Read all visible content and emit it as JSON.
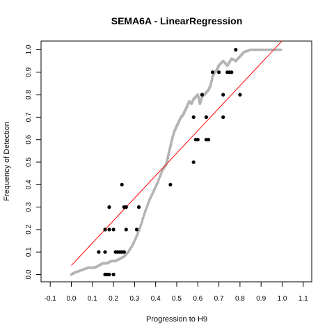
{
  "chart_data": {
    "type": "scatter",
    "title": "SEMA6A - LinearRegression",
    "xlabel": "Progression to H9",
    "ylabel": "Frequency of Detection",
    "xlim": [
      -0.1,
      1.1
    ],
    "ylim": [
      0.0,
      1.0
    ],
    "grid": false,
    "x_ticks": [
      -0.1,
      0.0,
      0.1,
      0.2,
      0.3,
      0.4,
      0.5,
      0.6,
      0.7,
      0.8,
      0.9,
      1.0,
      1.1
    ],
    "x_tick_labels": [
      "-0.1",
      "0.0",
      "0.1",
      "0.2",
      "0.3",
      "0.4",
      "0.5",
      "0.6",
      "0.7",
      "0.8",
      "0.9",
      "1.0",
      "1.1"
    ],
    "y_ticks": [
      0.0,
      0.1,
      0.2,
      0.3,
      0.4,
      0.5,
      0.6,
      0.7,
      0.8,
      0.9,
      1.0
    ],
    "y_tick_labels": [
      "0.0",
      "0.1",
      "0.2",
      "0.3",
      "0.4",
      "0.5",
      "0.6",
      "0.7",
      "0.8",
      "0.9",
      "1.0"
    ],
    "colors": {
      "points": "#000000",
      "cumulative": "#b4b4b4",
      "regression": "#ff0000"
    },
    "series": [
      {
        "type": "scatter",
        "x": [
          0.16,
          0.17,
          0.18,
          0.2,
          0.13,
          0.16,
          0.21,
          0.22,
          0.23,
          0.24,
          0.25,
          0.18,
          0.16,
          0.2,
          0.26,
          0.31,
          0.18,
          0.25,
          0.26,
          0.32,
          0.24,
          0.47,
          0.58,
          0.59,
          0.6,
          0.64,
          0.65,
          0.58,
          0.64,
          0.72,
          0.62,
          0.72,
          0.8,
          0.67,
          0.7,
          0.74,
          0.75,
          0.76,
          0.78
        ],
        "y": [
          0.0,
          0.0,
          0.0,
          0.0,
          0.1,
          0.1,
          0.1,
          0.1,
          0.1,
          0.1,
          0.1,
          0.2,
          0.2,
          0.2,
          0.2,
          0.2,
          0.3,
          0.3,
          0.3,
          0.3,
          0.4,
          0.4,
          0.5,
          0.6,
          0.6,
          0.6,
          0.6,
          0.7,
          0.7,
          0.7,
          0.8,
          0.8,
          0.8,
          0.9,
          0.9,
          0.9,
          0.9,
          0.9,
          1.0
        ]
      },
      {
        "type": "line",
        "x": [
          0.0,
          0.02,
          0.05,
          0.08,
          0.11,
          0.13,
          0.15,
          0.17,
          0.19,
          0.21,
          0.23,
          0.25,
          0.27,
          0.29,
          0.31,
          0.33,
          0.35,
          0.37,
          0.39,
          0.41,
          0.43,
          0.45,
          0.46,
          0.47,
          0.48,
          0.49,
          0.5,
          0.51,
          0.52,
          0.53,
          0.54,
          0.55,
          0.56,
          0.57,
          0.58,
          0.59,
          0.6,
          0.61,
          0.62,
          0.63,
          0.64,
          0.65,
          0.66,
          0.67,
          0.68,
          0.69,
          0.7,
          0.72,
          0.74,
          0.76,
          0.78,
          0.8,
          0.82,
          0.85,
          0.9,
          0.95,
          1.0
        ],
        "y": [
          0.0,
          0.01,
          0.02,
          0.03,
          0.03,
          0.04,
          0.05,
          0.05,
          0.06,
          0.06,
          0.07,
          0.08,
          0.1,
          0.13,
          0.17,
          0.22,
          0.28,
          0.33,
          0.37,
          0.41,
          0.46,
          0.49,
          0.53,
          0.57,
          0.61,
          0.64,
          0.66,
          0.68,
          0.7,
          0.71,
          0.73,
          0.75,
          0.77,
          0.76,
          0.78,
          0.79,
          0.8,
          0.76,
          0.79,
          0.8,
          0.81,
          0.82,
          0.84,
          0.88,
          0.9,
          0.91,
          0.93,
          0.95,
          0.93,
          0.96,
          0.95,
          0.97,
          0.99,
          1.0,
          1.0,
          1.0,
          1.0
        ]
      },
      {
        "type": "line",
        "x": [
          0.0,
          1.0
        ],
        "y": [
          0.04,
          1.04
        ]
      }
    ]
  }
}
